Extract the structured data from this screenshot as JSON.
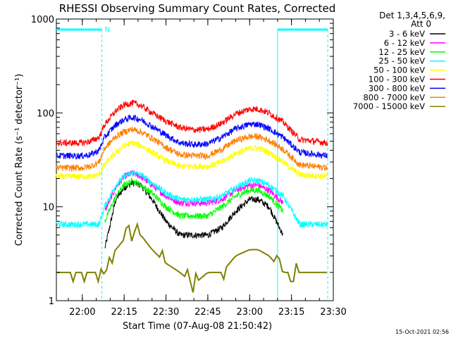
{
  "chart_data": {
    "type": "line",
    "title": "RHESSI Observing Summary Count Rates, Corrected",
    "ylabel": "Corrected Count Rate (s⁻¹ detector⁻¹)",
    "xlabel": "Start Time (07-Aug-08 21:50:42)",
    "y_scale": "log",
    "ylim": [
      1,
      1000
    ],
    "y_ticks": [
      {
        "value": 1,
        "label": "1"
      },
      {
        "value": 10,
        "label": "10"
      },
      {
        "value": 100,
        "label": "100"
      },
      {
        "value": 1000,
        "label": "1000"
      }
    ],
    "xlim": [
      "21:50:42",
      "23:30:00"
    ],
    "x_ticks": [
      "22:00",
      "22:15",
      "22:30",
      "22:45",
      "23:00",
      "23:15",
      "23:30"
    ],
    "grid": false,
    "legend_position": "outside-right",
    "legend_header": [
      "Det 1,3,4,5,6,9,",
      "Att 0"
    ],
    "series": [
      {
        "name": "3 - 6 keV",
        "color": "#000000",
        "values": [
          null,
          null,
          null,
          null,
          null,
          3.5,
          12,
          16,
          18,
          17,
          12,
          7,
          5,
          5,
          5,
          6,
          9,
          12,
          12,
          10,
          5,
          null,
          null
        ]
      },
      {
        "name": "6 - 12 keV",
        "color": "#ff00ff",
        "values": [
          null,
          null,
          null,
          null,
          null,
          9,
          16,
          21,
          23,
          21,
          17,
          13,
          11,
          11,
          11,
          12,
          15,
          17,
          17,
          15,
          11,
          null,
          null
        ]
      },
      {
        "name": "12 - 25 keV",
        "color": "#00ff00",
        "values": [
          null,
          null,
          null,
          null,
          null,
          7,
          13,
          17,
          19,
          17,
          14,
          10,
          8,
          8,
          8,
          10,
          13,
          15,
          15,
          13,
          9,
          null,
          null
        ]
      },
      {
        "name": "25 - 50 keV",
        "color": "#00ffff",
        "values": [
          6.5,
          6.5,
          6.5,
          6.5,
          6.5,
          10,
          17,
          21,
          23,
          22,
          18,
          14,
          12,
          12,
          12,
          13,
          16,
          19,
          19,
          17,
          13,
          6.5,
          6.5
        ]
      },
      {
        "name": "50 - 100 keV",
        "color": "#ffff00",
        "values": [
          21,
          21,
          21,
          21,
          22,
          28,
          38,
          45,
          48,
          45,
          38,
          31,
          27,
          27,
          27,
          30,
          37,
          42,
          42,
          38,
          30,
          22,
          21
        ]
      },
      {
        "name": "100 - 300 keV",
        "color": "#ff0000",
        "values": [
          48,
          48,
          48,
          50,
          55,
          75,
          105,
          122,
          128,
          120,
          100,
          82,
          70,
          66,
          67,
          78,
          98,
          110,
          110,
          100,
          80,
          52,
          48
        ]
      },
      {
        "name": "300 - 800 keV",
        "color": "#0000ff",
        "values": [
          35,
          35,
          35,
          36,
          40,
          55,
          75,
          85,
          90,
          85,
          72,
          58,
          48,
          46,
          47,
          55,
          68,
          76,
          76,
          68,
          55,
          38,
          35
        ]
      },
      {
        "name": "800 - 7000 keV",
        "color": "#ff8000",
        "values": [
          26,
          26,
          26,
          27,
          30,
          42,
          56,
          63,
          67,
          63,
          54,
          43,
          36,
          35,
          35,
          41,
          51,
          56,
          56,
          51,
          41,
          28,
          26
        ]
      },
      {
        "name": "7000 - 15000 keV",
        "color": "#808000",
        "values": [
          2,
          2,
          2,
          2,
          2,
          2.5,
          3.5,
          4.5,
          5.5,
          5,
          3.5,
          2.5,
          2,
          1.5,
          2,
          2,
          3,
          3.5,
          3.5,
          3,
          2,
          2,
          2
        ]
      }
    ],
    "x_samples": [
      "21:50:42",
      "21:55",
      "22:00",
      "22:03",
      "22:06",
      "22:08",
      "22:12",
      "22:15",
      "22:18",
      "22:21",
      "22:25",
      "22:30",
      "22:35",
      "22:40",
      "22:45",
      "22:50",
      "22:55",
      "23:00",
      "23:03",
      "23:07",
      "23:12",
      "23:18",
      "23:28"
    ],
    "annotations": [
      {
        "text": "N",
        "color": "#00ffff"
      }
    ],
    "flag_bars": {
      "color": "#00ffff",
      "intervals": [
        [
          "21:50:42",
          "22:07"
        ],
        [
          "23:10",
          "23:28"
        ]
      ]
    },
    "night_lines": {
      "color": "#00ffff",
      "times": [
        "22:07",
        "23:10",
        "23:28"
      ]
    },
    "timestamp": "15-Oct-2021 02:56"
  }
}
